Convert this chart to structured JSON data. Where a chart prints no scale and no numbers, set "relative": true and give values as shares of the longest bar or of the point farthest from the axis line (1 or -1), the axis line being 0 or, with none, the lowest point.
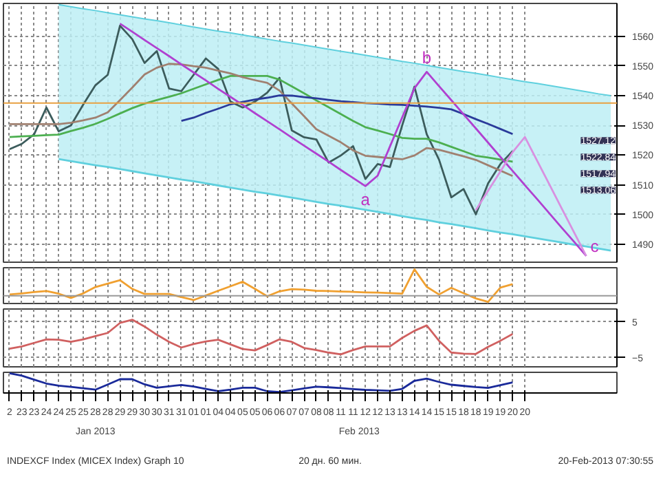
{
  "chart_data": [
    {
      "type": "line",
      "ylim": [
        1484,
        1571
      ],
      "yticks": [
        1490,
        1500,
        1510,
        1520,
        1530,
        1540,
        1550,
        1560
      ],
      "tick_labels": "y",
      "grid": true,
      "categories": [
        "2",
        "23",
        "23",
        "24",
        "24",
        "25",
        "25",
        "28",
        "28",
        "29",
        "29",
        "30",
        "30",
        "31",
        "31",
        "01",
        "01",
        "04",
        "04",
        "05",
        "05",
        "06",
        "06",
        "07",
        "07",
        "08",
        "08",
        "11",
        "11",
        "12",
        "12",
        "13",
        "13",
        "14",
        "14",
        "15",
        "15",
        "18",
        "18",
        "19",
        "19",
        "20",
        "20",
        null,
        null,
        null,
        null,
        null,
        null,
        null
      ],
      "series": [
        {
          "type": "area",
          "color": "#bdeef4",
          "values": [
            null,
            null,
            null,
            null,
            1570.6,
            1569.9,
            1569.2,
            1568.6,
            1567.9,
            1567.2,
            1566.5,
            1565.8,
            1565.2,
            1564.5,
            1563.8,
            1563.1,
            1562.4,
            1561.7,
            1561.1,
            1560.4,
            1559.7,
            1559,
            1558.3,
            1557.7,
            1557,
            1556.3,
            1555.6,
            1554.9,
            1554.3,
            1553.6,
            1552.9,
            1552.2,
            1551.5,
            1550.9,
            1550.2,
            1549.5,
            1548.8,
            1548.1,
            1547.5,
            1546.8,
            1546.1,
            1545.4,
            1544.7,
            1544.1,
            1543.4,
            1542.7,
            1542,
            1541.3,
            1540.6,
            1540
          ]
        },
        {
          "color": "#5fd0de",
          "values": [
            null,
            null,
            null,
            null,
            1518.7,
            1518,
            1517.3,
            1516.6,
            1516,
            1515.3,
            1514.6,
            1513.9,
            1513.2,
            1512.5,
            1511.8,
            1511.2,
            1510.5,
            1509.8,
            1509.1,
            1508.4,
            1507.7,
            1507.1,
            1506.4,
            1505.7,
            1505,
            1504.3,
            1503.6,
            1503,
            1502.3,
            1501.6,
            1500.9,
            1500.2,
            1499.5,
            1498.8,
            1498.2,
            1497.4,
            1496.8,
            1496.1,
            1495.4,
            1494.7,
            1494,
            1493.4,
            1492.7,
            1492,
            1491.3,
            1490.6,
            1489.9,
            1489.3,
            1488.6,
            1487.9
          ]
        },
        {
          "color": "#3c5c5c",
          "values": [
            1522,
            1523.8,
            1527,
            1536,
            1528,
            1530,
            1537,
            1543.5,
            1547,
            1563.5,
            1559,
            1551,
            1555,
            1542.4,
            1541.5,
            1547,
            1552.5,
            1549,
            1538,
            1536,
            1538,
            1541,
            1546,
            1528.3,
            1526,
            1525.3,
            1517.5,
            1519.9,
            1523,
            1512,
            1517,
            1516,
            1530,
            1543,
            1527,
            1518.5,
            1505.8,
            1508.6,
            1500.1,
            1510.5,
            1517,
            1521.4,
            null,
            null,
            null,
            null,
            null,
            null,
            null,
            null
          ]
        },
        {
          "color": "#4caf50",
          "values": [
            1526.1,
            1526.3,
            1526.5,
            1526.7,
            1526.9,
            1528.1,
            1529.2,
            1530.5,
            1532.2,
            1534,
            1535.8,
            1537.3,
            1538.5,
            1539.6,
            1540.8,
            1542.3,
            1543.8,
            1545.3,
            1546.6,
            1546.6,
            1546.6,
            1546.6,
            1545.4,
            1543.1,
            1540.8,
            1538.4,
            1536.1,
            1533.8,
            1531.5,
            1529.4,
            1528.3,
            1527.1,
            1525.8,
            1525.5,
            1525.5,
            1524.3,
            1522.8,
            1521.3,
            1519.8,
            1519.2,
            1518.5,
            1517.8,
            null,
            null,
            null,
            null,
            null,
            null,
            null,
            null
          ]
        },
        {
          "color": "#a08070",
          "values": [
            1530.4,
            1530.4,
            1530.4,
            1530.4,
            1530.4,
            1530.9,
            1531.7,
            1532.6,
            1534.4,
            1538.5,
            1542.7,
            1547.1,
            1549.4,
            1550.7,
            1550.5,
            1549.9,
            1549.4,
            1548.4,
            1547.5,
            1546.2,
            1545.2,
            1544.3,
            1541.7,
            1537.4,
            1533.1,
            1528.7,
            1526.5,
            1524.3,
            1521.6,
            1519.8,
            1519.4,
            1519,
            1518.6,
            1519.9,
            1522.4,
            1521.8,
            1520.7,
            1519.6,
            1518.4,
            1516.6,
            1514.8,
            1513,
            null,
            null,
            null,
            null,
            null,
            null,
            null,
            null
          ]
        },
        {
          "color": "#2a3a9a",
          "values": [
            null,
            null,
            null,
            null,
            null,
            null,
            null,
            null,
            null,
            null,
            null,
            null,
            null,
            null,
            1531.5,
            1532.6,
            1534.2,
            1535.6,
            1537.1,
            1537.9,
            1538.7,
            1539.3,
            1540.1,
            1540,
            1539.5,
            1539.1,
            1538.6,
            1538.1,
            1537.8,
            1537.5,
            1537.3,
            1537,
            1536.9,
            1536.6,
            1536.3,
            1535.9,
            1535.4,
            1533.8,
            1532.1,
            1530.5,
            1528.8,
            1527.1,
            null,
            null,
            null,
            null,
            null,
            null,
            null,
            null
          ]
        },
        {
          "color": "#b040d0",
          "values": [
            null,
            null,
            null,
            null,
            null,
            null,
            null,
            null,
            null,
            1564.2,
            1561.5,
            1558.7,
            1556,
            1553.3,
            1550.5,
            1547.8,
            1545.1,
            1542.3,
            1539.6,
            1536.9,
            1534.1,
            1531.4,
            1528.7,
            1525.9,
            1523.2,
            1520.5,
            1517.8,
            1515,
            1512.3,
            1509.6,
            1513.1,
            1522.9,
            1532.7,
            1542.5,
            1548,
            1543.2,
            1538.5,
            1533.7,
            1529,
            1524.2,
            1519.4,
            1514.7,
            1509.9,
            1505.2,
            1500.4,
            1495.6,
            1490.9,
            1486.1,
            null,
            null
          ]
        },
        {
          "color": "#d890e0",
          "values": [
            null,
            null,
            null,
            null,
            null,
            null,
            null,
            null,
            null,
            null,
            null,
            null,
            null,
            null,
            null,
            null,
            null,
            null,
            null,
            null,
            null,
            null,
            null,
            null,
            null,
            null,
            null,
            null,
            null,
            null,
            null,
            null,
            null,
            null,
            null,
            null,
            null,
            null,
            1501.5,
            1508,
            1514.5,
            1521,
            1526.1,
            1518.1,
            1510.1,
            1502.1,
            1494.1,
            1486.1,
            null,
            null
          ]
        }
      ],
      "ref_lines": [
        {
          "axis": "y",
          "value": 1537.5,
          "color": "#e8a040"
        }
      ],
      "annotations": [
        "a",
        "b",
        "c",
        "1527.12",
        "1522.84",
        "1517.94",
        "1513.06"
      ]
    },
    {
      "type": "line",
      "relative": true,
      "tick_labels": false,
      "grid": true,
      "categories": [
        "2",
        "23",
        "23",
        "24",
        "24",
        "25",
        "25",
        "28",
        "28",
        "29",
        "29",
        "30",
        "30",
        "31",
        "31",
        "01",
        "01",
        "04",
        "04",
        "05",
        "05",
        "06",
        "06",
        "07",
        "07",
        "08",
        "08",
        "11",
        "11",
        "12",
        "12",
        "13",
        "13",
        "14",
        "14",
        "15",
        "15",
        "18",
        "18",
        "19",
        "19",
        "20",
        "20",
        null,
        null,
        null,
        null,
        null,
        null,
        null
      ],
      "series": [
        {
          "color": "#f0a030",
          "values": [
            0.05,
            0.09,
            0.14,
            0.18,
            0.08,
            -0.08,
            0.09,
            0.33,
            0.46,
            0.59,
            0.26,
            0.07,
            0.07,
            0.07,
            -0.05,
            -0.16,
            0.01,
            0.19,
            0.36,
            0.53,
            0.26,
            -0.02,
            0.17,
            0.25,
            0.23,
            0.19,
            0.18,
            0.16,
            0.15,
            0.13,
            0.12,
            0.1,
            0.08,
            1,
            0.34,
            0.05,
            0.3,
            0.1,
            -0.1,
            -0.23,
            0.31,
            0.44,
            null,
            null,
            null,
            null,
            null,
            null,
            null,
            null
          ]
        }
      ]
    },
    {
      "type": "line",
      "ylim": [
        -7.6,
        8.6
      ],
      "yticks": [
        -5,
        5
      ],
      "tick_labels": "y",
      "grid": true,
      "categories": [
        "2",
        "23",
        "23",
        "24",
        "24",
        "25",
        "25",
        "28",
        "28",
        "29",
        "29",
        "30",
        "30",
        "31",
        "31",
        "01",
        "01",
        "04",
        "04",
        "05",
        "05",
        "06",
        "06",
        "07",
        "07",
        "08",
        "08",
        "11",
        "11",
        "12",
        "12",
        "13",
        "13",
        "14",
        "14",
        "15",
        "15",
        "18",
        "18",
        "19",
        "19",
        "20",
        "20",
        null,
        null,
        null,
        null,
        null,
        null,
        null
      ],
      "series": [
        {
          "color": "#d06060",
          "values": [
            -2.5,
            -1.9,
            -0.9,
            0.1,
            0.0,
            -0.6,
            0.1,
            1.0,
            1.9,
            4.7,
            5.6,
            3.7,
            1.4,
            -0.6,
            -2.2,
            -1.2,
            -0.5,
            0.0,
            -1.3,
            -2.6,
            -3.0,
            -1.5,
            0.1,
            -0.6,
            -2.3,
            -2.9,
            -3.6,
            -4.1,
            -2.9,
            -1.9,
            -1.9,
            -1.9,
            0.5,
            2.5,
            4.0,
            -0.3,
            -3.6,
            -3.9,
            -4.0,
            -2.0,
            -0.3,
            1.6,
            null,
            null,
            null,
            null,
            null,
            null,
            null,
            null
          ]
        }
      ]
    },
    {
      "type": "line",
      "relative": true,
      "tick_labels": "x",
      "grid": true,
      "categories": [
        "2",
        "23",
        "23",
        "24",
        "24",
        "25",
        "25",
        "28",
        "28",
        "29",
        "29",
        "30",
        "30",
        "31",
        "31",
        "01",
        "01",
        "04",
        "04",
        "05",
        "05",
        "06",
        "06",
        "07",
        "07",
        "08",
        "08",
        "11",
        "11",
        "12",
        "12",
        "13",
        "13",
        "14",
        "14",
        "15",
        "15",
        "18",
        "18",
        "19",
        "19",
        "20",
        "20",
        null,
        null,
        null,
        null,
        null,
        null,
        null
      ],
      "series": [
        {
          "color": "#1a2a9a",
          "values": [
            1,
            0.88,
            0.68,
            0.48,
            0.37,
            0.31,
            0.24,
            0.17,
            0.43,
            0.7,
            0.7,
            0.44,
            0.27,
            0.34,
            0.41,
            0.33,
            0.21,
            0.09,
            0.17,
            0.27,
            0.27,
            0.09,
            0.05,
            0.14,
            0.23,
            0.32,
            0.29,
            0.25,
            0.2,
            0.16,
            0.14,
            0.11,
            0.21,
            0.62,
            0.73,
            0.56,
            0.42,
            0.36,
            0.3,
            0.26,
            0.4,
            0.54,
            null,
            null,
            null,
            null,
            null,
            null,
            null,
            null
          ]
        }
      ],
      "annotations": [
        "Jan 2013",
        "Feb 2013",
        "INDEXCF Index (MICEX Index) Graph 10",
        "20 дн. 60 мин.",
        "20-Feb-2013 07:30:55"
      ]
    }
  ]
}
